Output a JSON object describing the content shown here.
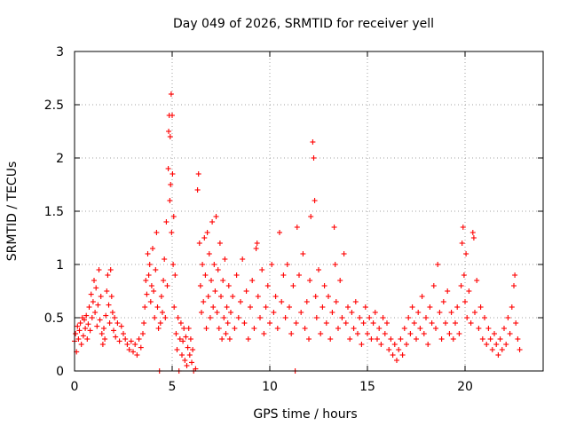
{
  "chart_data": {
    "type": "scatter",
    "title": "Day 049 of 2026, SRMTID for receiver yell",
    "xlabel": "GPS time / hours",
    "ylabel": "SRMTID / TECUs",
    "xlim": [
      0,
      24
    ],
    "ylim": [
      0,
      3
    ],
    "xticks": [
      0,
      5,
      10,
      15,
      20
    ],
    "yticks": [
      0,
      0.5,
      1,
      1.5,
      2,
      2.5,
      3
    ],
    "xtick_labels": [
      "0",
      "5",
      "10",
      "15",
      "20"
    ],
    "ytick_labels": [
      "0",
      "0.5",
      "1",
      "1.5",
      "2",
      "2.5",
      "3"
    ],
    "grid": true,
    "marker": "+",
    "color": "#ff0000",
    "series": [
      {
        "name": "SRMTID",
        "points": [
          [
            0.0,
            0.28
          ],
          [
            0.05,
            0.35
          ],
          [
            0.1,
            0.18
          ],
          [
            0.15,
            0.42
          ],
          [
            0.2,
            0.3
          ],
          [
            0.25,
            0.38
          ],
          [
            0.3,
            0.45
          ],
          [
            0.35,
            0.25
          ],
          [
            0.4,
            0.5
          ],
          [
            0.45,
            0.33
          ],
          [
            0.5,
            0.48
          ],
          [
            0.55,
            0.4
          ],
          [
            0.6,
            0.52
          ],
          [
            0.65,
            0.3
          ],
          [
            0.7,
            0.44
          ],
          [
            0.75,
            0.6
          ],
          [
            0.8,
            0.38
          ],
          [
            0.85,
            0.72
          ],
          [
            0.9,
            0.5
          ],
          [
            0.95,
            0.65
          ],
          [
            1.0,
            0.85
          ],
          [
            1.05,
            0.55
          ],
          [
            1.1,
            0.78
          ],
          [
            1.15,
            0.42
          ],
          [
            1.2,
            0.62
          ],
          [
            1.25,
            0.95
          ],
          [
            1.3,
            0.48
          ],
          [
            1.35,
            0.7
          ],
          [
            1.4,
            0.35
          ],
          [
            1.45,
            0.25
          ],
          [
            1.5,
            0.4
          ],
          [
            1.55,
            0.3
          ],
          [
            1.6,
            0.52
          ],
          [
            1.65,
            0.75
          ],
          [
            1.7,
            0.9
          ],
          [
            1.75,
            0.62
          ],
          [
            1.8,
            0.45
          ],
          [
            1.85,
            0.95
          ],
          [
            1.9,
            0.7
          ],
          [
            1.95,
            0.55
          ],
          [
            2.0,
            0.38
          ],
          [
            2.05,
            0.5
          ],
          [
            2.1,
            0.32
          ],
          [
            2.2,
            0.45
          ],
          [
            2.3,
            0.28
          ],
          [
            2.4,
            0.42
          ],
          [
            2.5,
            0.35
          ],
          [
            2.6,
            0.3
          ],
          [
            2.7,
            0.25
          ],
          [
            2.8,
            0.2
          ],
          [
            2.9,
            0.28
          ],
          [
            3.0,
            0.18
          ],
          [
            3.1,
            0.25
          ],
          [
            3.2,
            0.15
          ],
          [
            3.3,
            0.3
          ],
          [
            3.4,
            0.22
          ],
          [
            3.5,
            0.35
          ],
          [
            3.55,
            0.45
          ],
          [
            3.6,
            0.6
          ],
          [
            3.65,
            0.85
          ],
          [
            3.7,
            0.72
          ],
          [
            3.75,
            1.1
          ],
          [
            3.8,
            0.9
          ],
          [
            3.85,
            1.0
          ],
          [
            3.9,
            0.65
          ],
          [
            3.95,
            0.8
          ],
          [
            4.0,
            1.15
          ],
          [
            4.05,
            0.75
          ],
          [
            4.1,
            0.5
          ],
          [
            4.15,
            0.95
          ],
          [
            4.2,
            1.3
          ],
          [
            4.25,
            0.6
          ],
          [
            4.3,
            0.4
          ],
          [
            4.35,
            0.0
          ],
          [
            4.4,
            0.45
          ],
          [
            4.45,
            0.7
          ],
          [
            4.5,
            0.55
          ],
          [
            4.55,
            0.85
          ],
          [
            4.6,
            1.05
          ],
          [
            4.65,
            0.5
          ],
          [
            4.7,
            1.4
          ],
          [
            4.75,
            0.8
          ],
          [
            4.8,
            1.9
          ],
          [
            4.82,
            2.25
          ],
          [
            4.85,
            2.4
          ],
          [
            4.88,
            1.6
          ],
          [
            4.9,
            2.2
          ],
          [
            4.92,
            1.75
          ],
          [
            4.95,
            2.6
          ],
          [
            4.97,
            1.3
          ],
          [
            5.0,
            2.4
          ],
          [
            5.02,
            1.85
          ],
          [
            5.05,
            1.0
          ],
          [
            5.08,
            1.45
          ],
          [
            5.1,
            0.6
          ],
          [
            5.15,
            0.9
          ],
          [
            5.2,
            0.35
          ],
          [
            5.25,
            0.2
          ],
          [
            5.3,
            0.5
          ],
          [
            5.35,
            0.0
          ],
          [
            5.4,
            0.3
          ],
          [
            5.45,
            0.45
          ],
          [
            5.5,
            0.15
          ],
          [
            5.55,
            0.28
          ],
          [
            5.6,
            0.4
          ],
          [
            5.65,
            0.1
          ],
          [
            5.7,
            0.32
          ],
          [
            5.75,
            0.05
          ],
          [
            5.8,
            0.22
          ],
          [
            5.85,
            0.4
          ],
          [
            5.9,
            0.15
          ],
          [
            5.95,
            0.3
          ],
          [
            6.0,
            0.08
          ],
          [
            6.05,
            0.2
          ],
          [
            6.1,
            0.0
          ],
          [
            6.2,
            0.02
          ],
          [
            6.3,
            1.7
          ],
          [
            6.35,
            1.85
          ],
          [
            6.4,
            1.2
          ],
          [
            6.45,
            0.8
          ],
          [
            6.5,
            0.55
          ],
          [
            6.55,
            1.0
          ],
          [
            6.6,
            0.65
          ],
          [
            6.65,
            1.25
          ],
          [
            6.7,
            0.9
          ],
          [
            6.75,
            0.4
          ],
          [
            6.8,
            1.3
          ],
          [
            6.85,
            0.7
          ],
          [
            6.9,
            1.1
          ],
          [
            6.95,
            0.5
          ],
          [
            7.0,
            0.85
          ],
          [
            7.05,
            1.4
          ],
          [
            7.1,
            0.6
          ],
          [
            7.15,
            1.0
          ],
          [
            7.2,
            0.75
          ],
          [
            7.25,
            1.45
          ],
          [
            7.3,
            0.55
          ],
          [
            7.35,
            0.95
          ],
          [
            7.4,
            0.4
          ],
          [
            7.45,
            1.2
          ],
          [
            7.5,
            0.7
          ],
          [
            7.55,
            0.3
          ],
          [
            7.6,
            0.85
          ],
          [
            7.65,
            0.5
          ],
          [
            7.7,
            1.05
          ],
          [
            7.75,
            0.35
          ],
          [
            7.8,
            0.6
          ],
          [
            7.85,
            0.45
          ],
          [
            7.9,
            0.8
          ],
          [
            7.95,
            0.3
          ],
          [
            8.0,
            0.55
          ],
          [
            8.1,
            0.7
          ],
          [
            8.2,
            0.4
          ],
          [
            8.3,
            0.9
          ],
          [
            8.4,
            0.5
          ],
          [
            8.5,
            0.65
          ],
          [
            8.6,
            1.05
          ],
          [
            8.7,
            0.45
          ],
          [
            8.8,
            0.75
          ],
          [
            8.9,
            0.3
          ],
          [
            9.0,
            0.6
          ],
          [
            9.1,
            0.85
          ],
          [
            9.2,
            0.4
          ],
          [
            9.3,
            1.15
          ],
          [
            9.35,
            1.2
          ],
          [
            9.4,
            0.7
          ],
          [
            9.5,
            0.5
          ],
          [
            9.6,
            0.95
          ],
          [
            9.7,
            0.35
          ],
          [
            9.8,
            0.6
          ],
          [
            9.9,
            0.8
          ],
          [
            10.0,
            0.45
          ],
          [
            10.1,
            1.0
          ],
          [
            10.2,
            0.55
          ],
          [
            10.3,
            0.7
          ],
          [
            10.4,
            0.4
          ],
          [
            10.5,
            1.3
          ],
          [
            10.6,
            0.65
          ],
          [
            10.7,
            0.9
          ],
          [
            10.8,
            0.5
          ],
          [
            10.9,
            1.0
          ],
          [
            11.0,
            0.6
          ],
          [
            11.1,
            0.35
          ],
          [
            11.2,
            0.8
          ],
          [
            11.3,
            0.0
          ],
          [
            11.35,
            0.45
          ],
          [
            11.4,
            1.35
          ],
          [
            11.5,
            0.9
          ],
          [
            11.6,
            0.55
          ],
          [
            11.7,
            1.1
          ],
          [
            11.8,
            0.4
          ],
          [
            11.9,
            0.65
          ],
          [
            12.0,
            0.3
          ],
          [
            12.05,
            0.85
          ],
          [
            12.1,
            1.45
          ],
          [
            12.2,
            2.15
          ],
          [
            12.25,
            2.0
          ],
          [
            12.3,
            1.6
          ],
          [
            12.35,
            0.7
          ],
          [
            12.4,
            0.5
          ],
          [
            12.5,
            0.95
          ],
          [
            12.6,
            0.35
          ],
          [
            12.7,
            0.6
          ],
          [
            12.8,
            0.8
          ],
          [
            12.9,
            0.45
          ],
          [
            13.0,
            0.7
          ],
          [
            13.1,
            0.3
          ],
          [
            13.2,
            0.55
          ],
          [
            13.3,
            1.35
          ],
          [
            13.35,
            1.0
          ],
          [
            13.4,
            0.65
          ],
          [
            13.5,
            0.4
          ],
          [
            13.6,
            0.85
          ],
          [
            13.7,
            0.5
          ],
          [
            13.8,
            1.1
          ],
          [
            13.9,
            0.45
          ],
          [
            14.0,
            0.6
          ],
          [
            14.1,
            0.3
          ],
          [
            14.2,
            0.55
          ],
          [
            14.3,
            0.4
          ],
          [
            14.4,
            0.65
          ],
          [
            14.5,
            0.35
          ],
          [
            14.6,
            0.5
          ],
          [
            14.7,
            0.25
          ],
          [
            14.8,
            0.45
          ],
          [
            14.9,
            0.6
          ],
          [
            15.0,
            0.35
          ],
          [
            15.1,
            0.5
          ],
          [
            15.2,
            0.3
          ],
          [
            15.3,
            0.45
          ],
          [
            15.4,
            0.55
          ],
          [
            15.5,
            0.3
          ],
          [
            15.6,
            0.4
          ],
          [
            15.7,
            0.25
          ],
          [
            15.8,
            0.5
          ],
          [
            15.9,
            0.35
          ],
          [
            16.0,
            0.45
          ],
          [
            16.1,
            0.2
          ],
          [
            16.2,
            0.3
          ],
          [
            16.3,
            0.15
          ],
          [
            16.4,
            0.25
          ],
          [
            16.5,
            0.1
          ],
          [
            16.6,
            0.2
          ],
          [
            16.7,
            0.3
          ],
          [
            16.8,
            0.15
          ],
          [
            16.9,
            0.4
          ],
          [
            17.0,
            0.25
          ],
          [
            17.1,
            0.5
          ],
          [
            17.2,
            0.35
          ],
          [
            17.3,
            0.6
          ],
          [
            17.4,
            0.45
          ],
          [
            17.5,
            0.3
          ],
          [
            17.6,
            0.55
          ],
          [
            17.7,
            0.4
          ],
          [
            17.8,
            0.7
          ],
          [
            17.9,
            0.35
          ],
          [
            18.0,
            0.5
          ],
          [
            18.1,
            0.25
          ],
          [
            18.2,
            0.6
          ],
          [
            18.3,
            0.45
          ],
          [
            18.4,
            0.8
          ],
          [
            18.5,
            0.4
          ],
          [
            18.6,
            1.0
          ],
          [
            18.7,
            0.55
          ],
          [
            18.8,
            0.3
          ],
          [
            18.9,
            0.65
          ],
          [
            19.0,
            0.45
          ],
          [
            19.1,
            0.75
          ],
          [
            19.2,
            0.35
          ],
          [
            19.3,
            0.55
          ],
          [
            19.4,
            0.3
          ],
          [
            19.5,
            0.45
          ],
          [
            19.6,
            0.6
          ],
          [
            19.7,
            0.35
          ],
          [
            19.8,
            0.8
          ],
          [
            19.85,
            1.2
          ],
          [
            19.9,
            1.35
          ],
          [
            19.95,
            0.9
          ],
          [
            20.0,
            0.65
          ],
          [
            20.05,
            1.1
          ],
          [
            20.1,
            0.5
          ],
          [
            20.2,
            0.75
          ],
          [
            20.3,
            0.45
          ],
          [
            20.4,
            1.3
          ],
          [
            20.45,
            1.25
          ],
          [
            20.5,
            0.55
          ],
          [
            20.6,
            0.85
          ],
          [
            20.7,
            0.4
          ],
          [
            20.8,
            0.6
          ],
          [
            20.9,
            0.3
          ],
          [
            21.0,
            0.5
          ],
          [
            21.1,
            0.25
          ],
          [
            21.2,
            0.4
          ],
          [
            21.3,
            0.3
          ],
          [
            21.4,
            0.2
          ],
          [
            21.5,
            0.35
          ],
          [
            21.6,
            0.25
          ],
          [
            21.7,
            0.15
          ],
          [
            21.8,
            0.3
          ],
          [
            21.9,
            0.2
          ],
          [
            22.0,
            0.4
          ],
          [
            22.1,
            0.25
          ],
          [
            22.2,
            0.5
          ],
          [
            22.3,
            0.35
          ],
          [
            22.4,
            0.6
          ],
          [
            22.5,
            0.8
          ],
          [
            22.55,
            0.9
          ],
          [
            22.6,
            0.45
          ],
          [
            22.7,
            0.3
          ],
          [
            22.8,
            0.2
          ]
        ]
      }
    ]
  }
}
